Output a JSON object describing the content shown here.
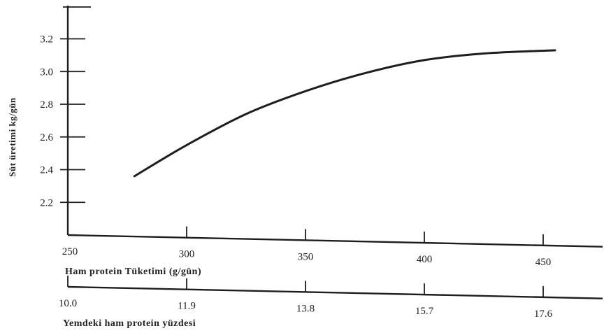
{
  "chart_data": {
    "type": "line",
    "title": "",
    "ylabel": "Süt üretimi kg/gün",
    "ylim": [
      2.0,
      3.4
    ],
    "yticks": [
      "2.2",
      "2.4",
      "2.6",
      "2.8",
      "3.0",
      "3.2"
    ],
    "xlabel": "Ham protein Tüketimi (g/gün)",
    "xlim": [
      250,
      500
    ],
    "xticks": [
      "250",
      "300",
      "350",
      "400",
      "450"
    ],
    "secondary_x": {
      "label": "Yemdeki ham protein yüzdesi",
      "ticks": [
        "10.0",
        "11.9",
        "13.8",
        "15.7",
        "17.6"
      ]
    },
    "grid": false,
    "series": [
      {
        "x": [
          278,
          300,
          325,
          350,
          375,
          400,
          425,
          455
        ],
        "y": [
          2.36,
          2.55,
          2.74,
          2.88,
          2.99,
          3.07,
          3.11,
          3.13
        ]
      }
    ]
  }
}
